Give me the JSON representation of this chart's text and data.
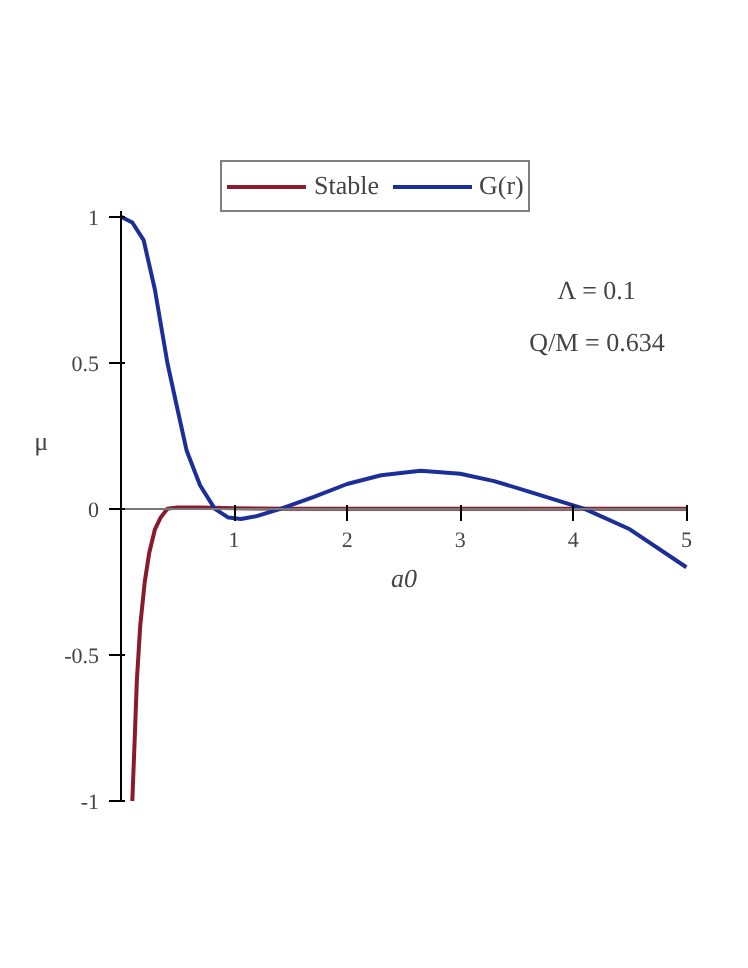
{
  "chart_data": {
    "type": "line",
    "xlabel": "a0",
    "ylabel": "μ",
    "xlim": [
      0,
      5
    ],
    "ylim": [
      -1,
      1.02
    ],
    "xticks": [
      1,
      2,
      3,
      4,
      5
    ],
    "yticks": [
      -1,
      -0.5,
      0,
      0.5,
      1
    ],
    "grid": false,
    "legend": "top",
    "line_style": "solid",
    "marker": "none",
    "annotations": [
      "Λ = 0.1",
      "Q/M = 0.634"
    ],
    "series": [
      {
        "name": "Stable",
        "color": "#8b1a2b",
        "x": [
          0.1,
          0.12,
          0.14,
          0.17,
          0.21,
          0.25,
          0.3,
          0.35,
          0.41,
          0.5,
          0.7,
          1.0,
          1.5,
          5
        ],
        "values": [
          -1,
          -0.8,
          -0.59,
          -0.4,
          -0.25,
          -0.15,
          -0.07,
          -0.03,
          0,
          0.005,
          0.005,
          0.002,
          0,
          0
        ]
      },
      {
        "name": "G(r)",
        "color": "#1c2f99",
        "x": [
          0,
          0.1,
          0.2,
          0.3,
          0.41,
          0.5,
          0.58,
          0.7,
          0.83,
          0.95,
          1.06,
          1.2,
          1.41,
          1.7,
          2.0,
          2.3,
          2.65,
          3.0,
          3.3,
          3.6,
          4.1,
          4.5,
          5
        ],
        "values": [
          1,
          0.98,
          0.92,
          0.75,
          0.5,
          0.34,
          0.2,
          0.08,
          0,
          -0.03,
          -0.035,
          -0.025,
          0,
          0.04,
          0.085,
          0.115,
          0.13,
          0.12,
          0.095,
          0.06,
          0,
          -0.07,
          -0.2
        ]
      }
    ]
  }
}
